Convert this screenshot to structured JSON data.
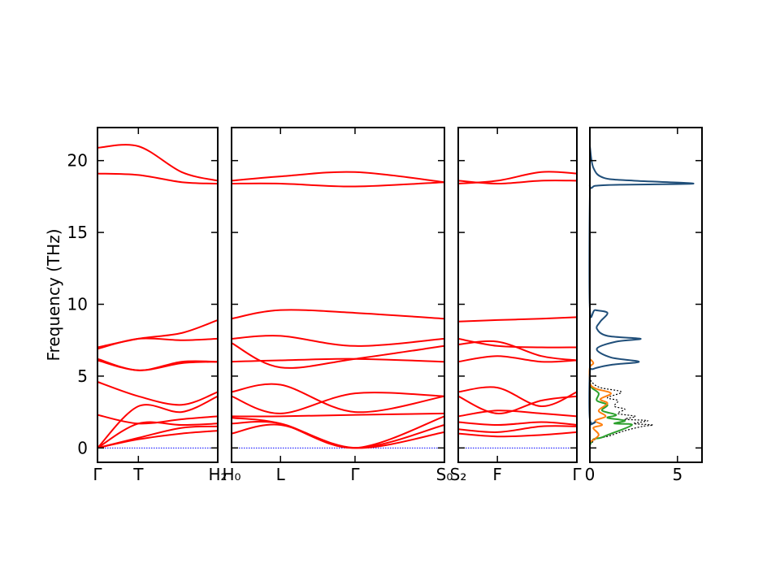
{
  "chart_data": {
    "type": "line",
    "ylabel": "Frequency (THz)",
    "ylim": [
      -1.0,
      22.3
    ],
    "yticks": [
      0,
      5,
      10,
      15,
      20
    ],
    "grid": false,
    "band_color": "#ff0000",
    "zero_line_color": "#0000ff",
    "panels": [
      {
        "kind": "band",
        "segments": [
          {
            "label": "Γ",
            "x": 0.0
          },
          {
            "label": "T",
            "x": 0.34
          },
          {
            "label": "H₂",
            "x": 1.0
          }
        ],
        "bands": [
          [
            [
              0,
              0
            ],
            [
              0.34,
              0.6
            ],
            [
              0.7,
              1.0
            ],
            [
              1,
              1.2
            ]
          ],
          [
            [
              0,
              0
            ],
            [
              0.34,
              0.7
            ],
            [
              0.7,
              1.4
            ],
            [
              1,
              1.5
            ]
          ],
          [
            [
              0,
              0
            ],
            [
              0.34,
              1.7
            ],
            [
              0.7,
              1.6
            ],
            [
              1,
              1.7
            ]
          ],
          [
            [
              0,
              0
            ],
            [
              0.34,
              2.9
            ],
            [
              0.7,
              2.5
            ],
            [
              1,
              3.6
            ]
          ],
          [
            [
              0,
              2.3
            ],
            [
              0.34,
              1.7
            ],
            [
              0.7,
              2.0
            ],
            [
              1,
              2.2
            ]
          ],
          [
            [
              0,
              4.6
            ],
            [
              0.34,
              3.6
            ],
            [
              0.7,
              3.0
            ],
            [
              1,
              3.9
            ]
          ],
          [
            [
              0,
              6.2
            ],
            [
              0.34,
              5.4
            ],
            [
              0.7,
              6.0
            ],
            [
              1,
              6.0
            ]
          ],
          [
            [
              0,
              6.1
            ],
            [
              0.34,
              5.4
            ],
            [
              0.7,
              5.9
            ],
            [
              1,
              6.0
            ]
          ],
          [
            [
              0,
              6.9
            ],
            [
              0.34,
              7.6
            ],
            [
              0.7,
              7.5
            ],
            [
              1,
              7.6
            ]
          ],
          [
            [
              0,
              7.0
            ],
            [
              0.34,
              7.6
            ],
            [
              0.7,
              8.0
            ],
            [
              1,
              8.9
            ]
          ],
          [
            [
              0,
              19.1
            ],
            [
              0.34,
              19.0
            ],
            [
              0.7,
              18.5
            ],
            [
              1,
              18.4
            ]
          ],
          [
            [
              0,
              20.9
            ],
            [
              0.34,
              21.0
            ],
            [
              0.7,
              19.2
            ],
            [
              1,
              18.6
            ]
          ]
        ]
      },
      {
        "kind": "band",
        "segments": [
          {
            "label": "H₀",
            "x": 0.0
          },
          {
            "label": "L",
            "x": 0.23
          },
          {
            "label": "Γ",
            "x": 0.58
          },
          {
            "label": "S₀",
            "x": 1.0
          }
        ],
        "bands": [
          [
            [
              0,
              1.0
            ],
            [
              0.23,
              1.6
            ],
            [
              0.58,
              0.0
            ],
            [
              1,
              1.1
            ]
          ],
          [
            [
              0,
              1.7
            ],
            [
              0.23,
              1.7
            ],
            [
              0.58,
              0.0
            ],
            [
              1,
              1.6
            ]
          ],
          [
            [
              0,
              2.1
            ],
            [
              0.23,
              1.7
            ],
            [
              0.58,
              0.0
            ],
            [
              1,
              2.2
            ]
          ],
          [
            [
              0,
              2.2
            ],
            [
              0.23,
              2.2
            ],
            [
              0.58,
              2.3
            ],
            [
              1,
              2.4
            ]
          ],
          [
            [
              0,
              3.6
            ],
            [
              0.23,
              2.4
            ],
            [
              0.58,
              3.8
            ],
            [
              1,
              3.6
            ]
          ],
          [
            [
              0,
              3.9
            ],
            [
              0.23,
              4.4
            ],
            [
              0.58,
              2.5
            ],
            [
              1,
              3.6
            ]
          ],
          [
            [
              0,
              6.0
            ],
            [
              0.23,
              6.1
            ],
            [
              0.58,
              6.2
            ],
            [
              1,
              6.0
            ]
          ],
          [
            [
              0,
              7.3
            ],
            [
              0.23,
              5.6
            ],
            [
              0.58,
              6.2
            ],
            [
              1,
              7.1
            ]
          ],
          [
            [
              0,
              7.6
            ],
            [
              0.23,
              7.8
            ],
            [
              0.58,
              7.1
            ],
            [
              1,
              7.6
            ]
          ],
          [
            [
              0,
              9.0
            ],
            [
              0.23,
              9.6
            ],
            [
              0.58,
              9.4
            ],
            [
              1,
              9.0
            ]
          ],
          [
            [
              0,
              18.4
            ],
            [
              0.23,
              18.4
            ],
            [
              0.58,
              18.2
            ],
            [
              1,
              18.5
            ]
          ],
          [
            [
              0,
              18.6
            ],
            [
              0.23,
              18.9
            ],
            [
              0.58,
              19.2
            ],
            [
              1,
              18.5
            ]
          ]
        ]
      },
      {
        "kind": "band",
        "segments": [
          {
            "label": "S₂",
            "x": 0.0
          },
          {
            "label": "F",
            "x": 0.33
          },
          {
            "label": "Γ",
            "x": 1.0
          }
        ],
        "bands": [
          [
            [
              0,
              1.0
            ],
            [
              0.33,
              0.8
            ],
            [
              0.7,
              0.9
            ],
            [
              1,
              1.1
            ]
          ],
          [
            [
              0,
              1.3
            ],
            [
              0.33,
              1.1
            ],
            [
              0.7,
              1.5
            ],
            [
              1,
              1.5
            ]
          ],
          [
            [
              0,
              1.8
            ],
            [
              0.33,
              1.6
            ],
            [
              0.7,
              1.8
            ],
            [
              1,
              1.6
            ]
          ],
          [
            [
              0,
              2.2
            ],
            [
              0.33,
              2.6
            ],
            [
              0.7,
              2.4
            ],
            [
              1,
              2.2
            ]
          ],
          [
            [
              0,
              3.6
            ],
            [
              0.33,
              2.4
            ],
            [
              0.7,
              3.3
            ],
            [
              1,
              3.6
            ]
          ],
          [
            [
              0,
              3.9
            ],
            [
              0.33,
              4.2
            ],
            [
              0.7,
              2.9
            ],
            [
              1,
              3.9
            ]
          ],
          [
            [
              0,
              6.0
            ],
            [
              0.33,
              6.4
            ],
            [
              0.7,
              6.0
            ],
            [
              1,
              6.1
            ]
          ],
          [
            [
              0,
              7.2
            ],
            [
              0.33,
              7.4
            ],
            [
              0.7,
              6.4
            ],
            [
              1,
              6.1
            ]
          ],
          [
            [
              0,
              7.6
            ],
            [
              0.33,
              7.1
            ],
            [
              0.7,
              7.0
            ],
            [
              1,
              7.0
            ]
          ],
          [
            [
              0,
              8.8
            ],
            [
              0.33,
              8.9
            ],
            [
              0.7,
              9.0
            ],
            [
              1,
              9.1
            ]
          ],
          [
            [
              0,
              18.4
            ],
            [
              0.33,
              18.6
            ],
            [
              0.7,
              19.2
            ],
            [
              1,
              19.1
            ]
          ],
          [
            [
              0,
              18.6
            ],
            [
              0.33,
              18.4
            ],
            [
              0.7,
              18.6
            ],
            [
              1,
              18.6
            ]
          ]
        ]
      },
      {
        "kind": "dos",
        "xlim": [
          0,
          6.4
        ],
        "xticks": [
          0,
          5
        ],
        "series": [
          {
            "color": "#000000",
            "dash": "2,2",
            "points": [
              [
                0,
                0.2
              ],
              [
                0.3,
                0.6
              ],
              [
                0.5,
                0.7
              ],
              [
                1.0,
                0.8
              ],
              [
                2.0,
                1.2
              ],
              [
                3.0,
                1.5
              ],
              [
                3.6,
                1.6
              ],
              [
                2.5,
                1.7
              ],
              [
                3.3,
                1.9
              ],
              [
                2.0,
                2.0
              ],
              [
                2.6,
                2.2
              ],
              [
                1.6,
                2.4
              ],
              [
                2.0,
                2.7
              ],
              [
                1.4,
                2.9
              ],
              [
                1.6,
                3.3
              ],
              [
                1.0,
                3.5
              ],
              [
                1.8,
                3.9
              ],
              [
                0.6,
                4.2
              ],
              [
                0.1,
                4.6
              ],
              [
                0,
                5.0
              ]
            ]
          },
          {
            "color": "#2ca02c",
            "dash": "",
            "points": [
              [
                0,
                0.2
              ],
              [
                0.2,
                0.6
              ],
              [
                0.6,
                0.7
              ],
              [
                1.0,
                0.9
              ],
              [
                2.4,
                1.6
              ],
              [
                1.4,
                1.7
              ],
              [
                2.0,
                1.9
              ],
              [
                1.0,
                2.1
              ],
              [
                1.5,
                2.3
              ],
              [
                0.7,
                2.6
              ],
              [
                1.0,
                3.0
              ],
              [
                0.4,
                3.3
              ],
              [
                0.5,
                3.8
              ],
              [
                0.1,
                4.2
              ],
              [
                0,
                4.6
              ]
            ]
          },
          {
            "color": "#ff7f0e",
            "dash": "",
            "points": [
              [
                0,
                0.4
              ],
              [
                0.5,
                0.9
              ],
              [
                0.2,
                1.4
              ],
              [
                0.7,
                1.6
              ],
              [
                0.3,
                1.9
              ],
              [
                0.9,
                2.2
              ],
              [
                0.5,
                2.6
              ],
              [
                1.0,
                3.1
              ],
              [
                0.6,
                3.4
              ],
              [
                1.2,
                3.8
              ],
              [
                0.4,
                4.1
              ],
              [
                0.1,
                4.3
              ],
              [
                0,
                4.6
              ],
              [
                0,
                5.6
              ],
              [
                0.2,
                5.9
              ],
              [
                0,
                6.2
              ]
            ]
          },
          {
            "color": "#1f4e79",
            "dash": "",
            "points": [
              [
                0,
                1.6
              ],
              [
                0.3,
                1.8
              ],
              [
                0,
                2.0
              ],
              [
                0,
                5.2
              ],
              [
                0.2,
                5.5
              ],
              [
                1.3,
                5.8
              ],
              [
                2.8,
                6.0
              ],
              [
                1.2,
                6.3
              ],
              [
                0.4,
                6.9
              ],
              [
                1.5,
                7.4
              ],
              [
                2.9,
                7.6
              ],
              [
                1.0,
                7.8
              ],
              [
                0.4,
                8.3
              ],
              [
                0.6,
                8.8
              ],
              [
                1.0,
                9.4
              ],
              [
                0.3,
                9.6
              ],
              [
                0,
                9.7
              ],
              [
                0,
                17.5
              ],
              [
                0.1,
                18.1
              ],
              [
                1.0,
                18.3
              ],
              [
                5.9,
                18.4
              ],
              [
                2.5,
                18.6
              ],
              [
                0.8,
                18.8
              ],
              [
                0.2,
                19.5
              ],
              [
                0,
                21.0
              ]
            ]
          }
        ]
      }
    ]
  }
}
